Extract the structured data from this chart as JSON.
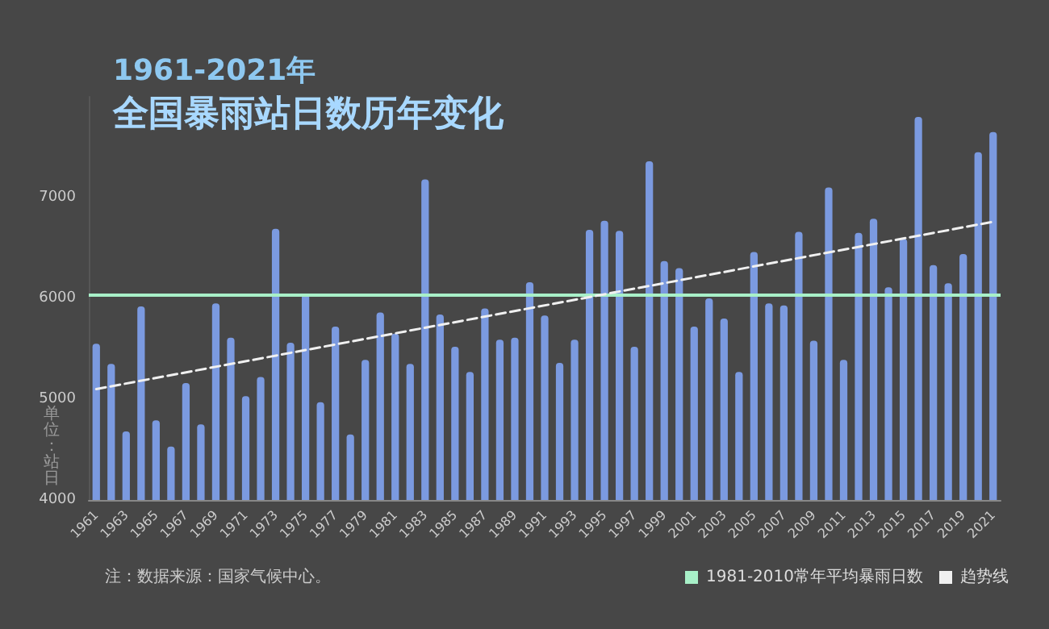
{
  "chart_data": {
    "type": "bar",
    "title": "1961-2021年",
    "subtitle": "全国暴雨站日数历年变化",
    "ylabel": "单位：站日",
    "annotations": [
      "注：数据来源：国家气候中心。"
    ],
    "categories": [
      "1961",
      null,
      "1963",
      null,
      "1965",
      null,
      "1967",
      null,
      "1969",
      null,
      "1971",
      null,
      "1973",
      null,
      "1975",
      null,
      "1977",
      null,
      "1979",
      null,
      "1981",
      null,
      "1983",
      null,
      "1985",
      null,
      "1987",
      null,
      "1989",
      null,
      "1991",
      null,
      "1993",
      null,
      "1995",
      null,
      "1997",
      null,
      "1999",
      null,
      "2001",
      null,
      "2003",
      null,
      "2005",
      null,
      "2007",
      null,
      "2009",
      null,
      "2011",
      null,
      "2013",
      null,
      "2015",
      null,
      "2017",
      null,
      "2019",
      null,
      "2021"
    ],
    "series": [
      {
        "color": "#7b9ae0",
        "values": [
          5550,
          5350,
          4680,
          5920,
          4790,
          4530,
          5160,
          4750,
          5950,
          5610,
          5030,
          5220,
          6690,
          5560,
          6040,
          4970,
          5720,
          4650,
          5390,
          5860,
          5650,
          5350,
          7180,
          5840,
          5520,
          5270,
          5900,
          5590,
          5610,
          6160,
          5830,
          5360,
          5590,
          6680,
          6770,
          6670,
          5520,
          7360,
          6370,
          6300,
          5720,
          6000,
          5800,
          5270,
          6460,
          5950,
          5930,
          6660,
          5580,
          7100,
          5390,
          6650,
          6790,
          6110,
          6590,
          7800,
          6330,
          6150,
          6440,
          7450,
          7650
        ]
      },
      {
        "type": "line",
        "name": "趋势线",
        "color": "#f0f0f0",
        "line_style": "dashed",
        "marker": "none",
        "values": [
          5100,
          null,
          null,
          null,
          null,
          null,
          null,
          null,
          null,
          null,
          null,
          null,
          null,
          null,
          null,
          null,
          null,
          null,
          null,
          null,
          null,
          null,
          null,
          null,
          null,
          null,
          null,
          null,
          null,
          null,
          null,
          null,
          null,
          null,
          null,
          null,
          null,
          null,
          null,
          null,
          null,
          null,
          null,
          null,
          null,
          null,
          null,
          null,
          null,
          null,
          null,
          null,
          null,
          null,
          null,
          null,
          null,
          null,
          null,
          null,
          6760
        ]
      }
    ],
    "ref_lines": [
      {
        "axis": "y",
        "value": 6030,
        "label": "1981-2010常年平均暴雨日数",
        "color": "#a8f0c8"
      }
    ],
    "ylim": [
      4000,
      8000
    ],
    "yticks": [
      4000,
      5000,
      6000,
      7000
    ],
    "grid": false,
    "legend": "bottom right"
  }
}
